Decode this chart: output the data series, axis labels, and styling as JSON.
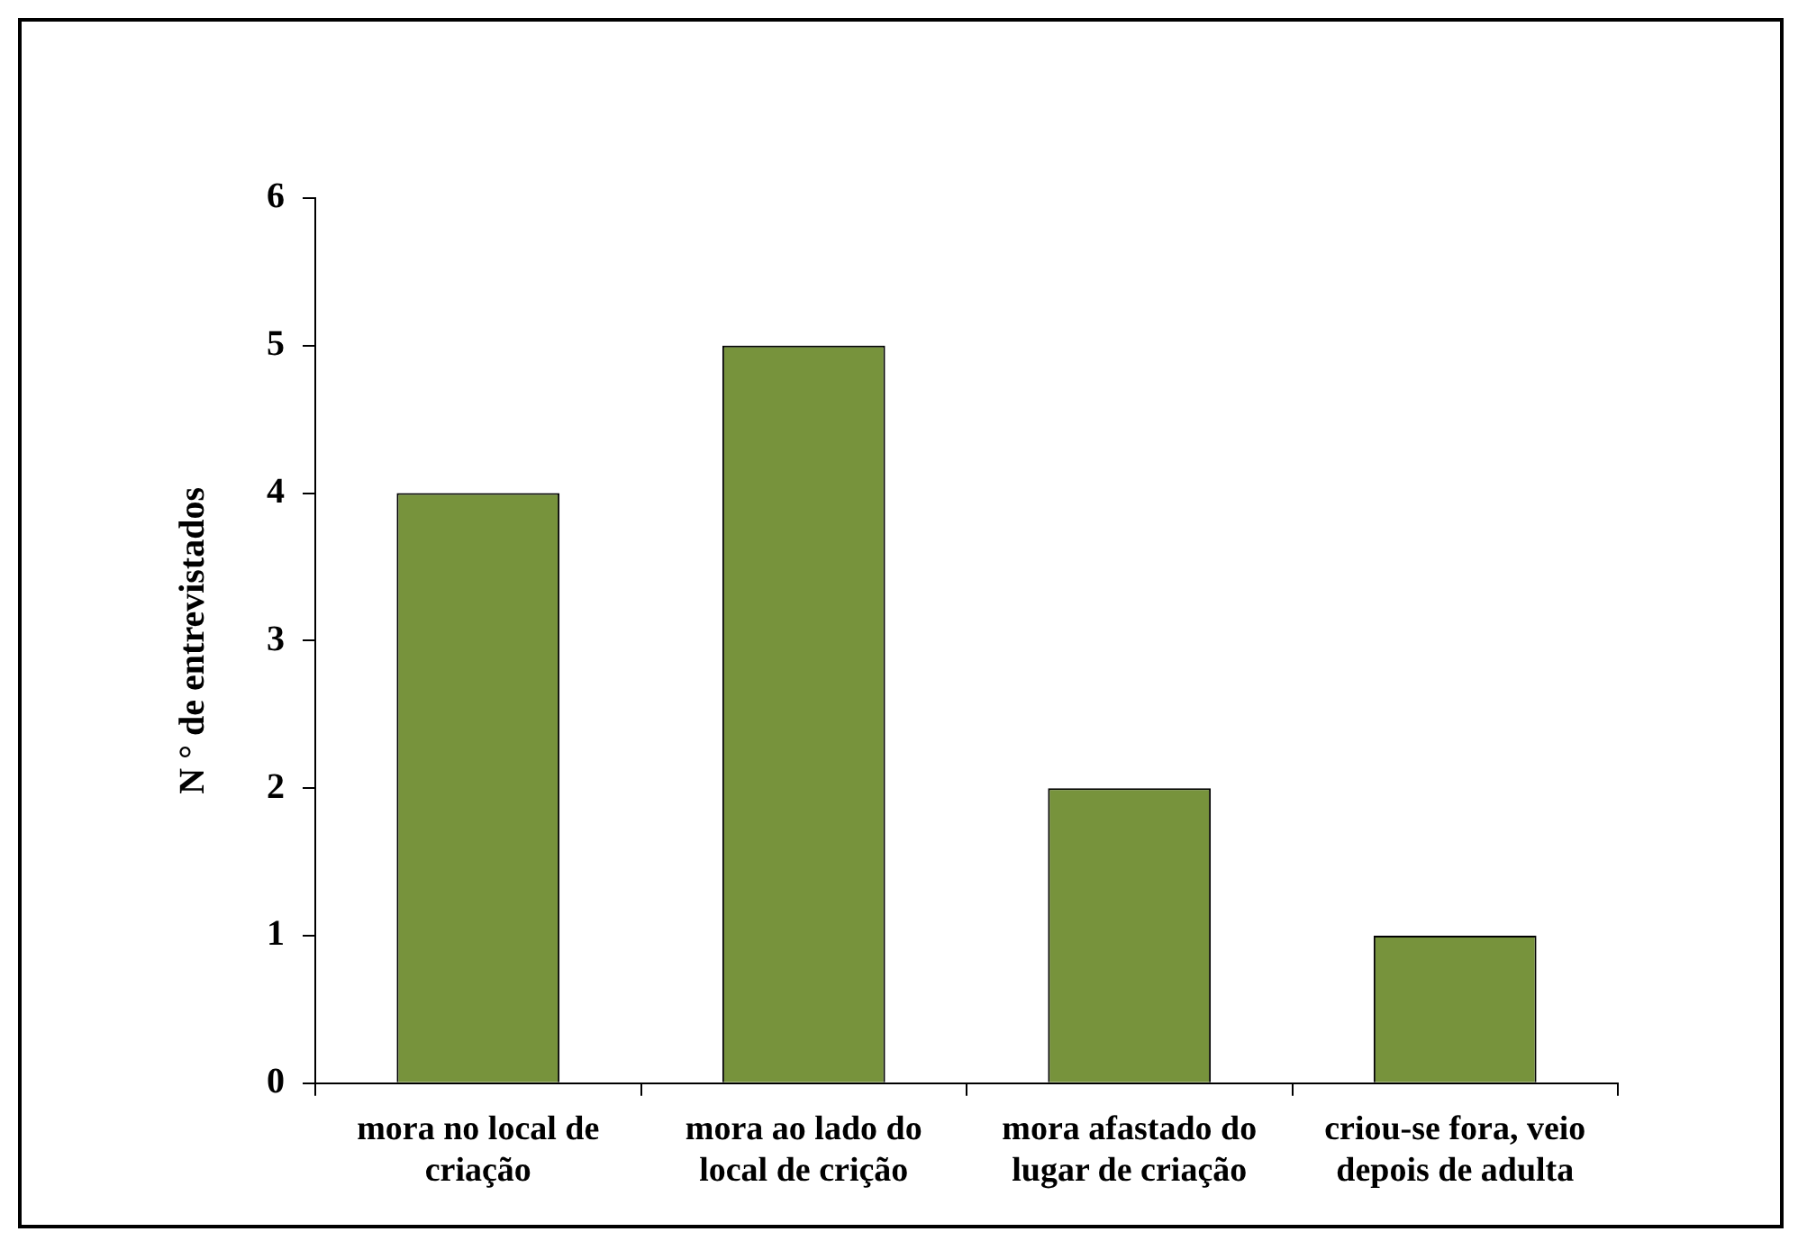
{
  "chart_data": {
    "type": "bar",
    "ylabel": "N ° de entrevistados",
    "categories": [
      "mora no local de criação",
      "mora ao lado do local de crição",
      "mora afastado do lugar de criação",
      "criou-se fora, veio depois de adulta"
    ],
    "values": [
      4,
      5,
      2,
      1
    ],
    "color": "#77933c",
    "ylim": [
      0,
      6
    ],
    "yticks": [
      0,
      1,
      2,
      3,
      4,
      5,
      6
    ],
    "grid": false,
    "legend": false
  }
}
